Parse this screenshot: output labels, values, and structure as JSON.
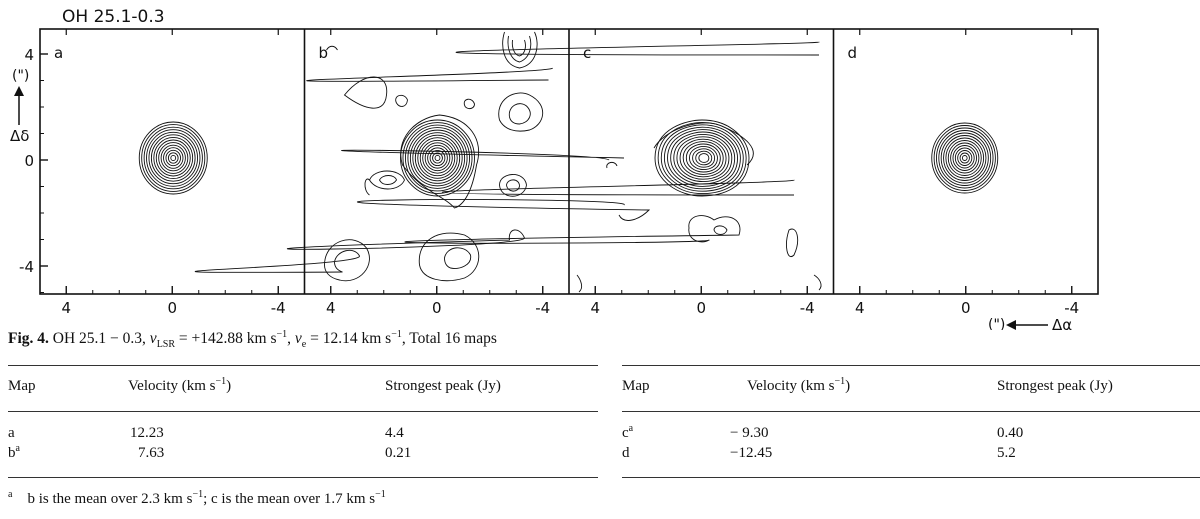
{
  "figure": {
    "title": "OH 25.1-0.3",
    "panel_labels": [
      "a",
      "b",
      "c",
      "d"
    ],
    "x_tick_labels": [
      "4",
      "0",
      "-4"
    ],
    "y_tick_labels": [
      "4",
      "0",
      "-4"
    ],
    "y_axis_unit": "(\")",
    "y_axis_symbol": "Δδ",
    "x_axis_unit": "(\")",
    "x_axis_symbol": "Δα"
  },
  "caption": {
    "label": "Fig. 4.",
    "source": "OH 25.1 − 0.3,",
    "v_lsr": "v",
    "v_lsr_sub": "LSR",
    "v_lsr_value": " = +142.88 km s",
    "v_e": "v",
    "v_e_sub": "e",
    "v_e_value": " = 12.14 km s",
    "exp": "−1",
    "total": ", Total 16 maps"
  },
  "tables": [
    {
      "headers": [
        "Map",
        "Velocity (km s−1)",
        "Strongest peak (Jy)"
      ],
      "rows": [
        {
          "map": "a",
          "sup": "",
          "velocity": "12.23",
          "peak": "4.4"
        },
        {
          "map": "b",
          "sup": "a",
          "velocity": "7.63",
          "peak": "0.21"
        }
      ]
    },
    {
      "headers": [
        "Map",
        "Velocity (km s−1)",
        "Strongest peak (Jy)"
      ],
      "rows": [
        {
          "map": "c",
          "sup": "a",
          "velocity": "− 9.30",
          "peak": "0.40"
        },
        {
          "map": "d",
          "sup": "",
          "velocity": "−12.45",
          "peak": "5.2"
        }
      ]
    }
  ],
  "footnote": {
    "marker": "a",
    "text": "b is the mean over 2.3 km s−1; c is the mean over 1.7 km s−1"
  }
}
